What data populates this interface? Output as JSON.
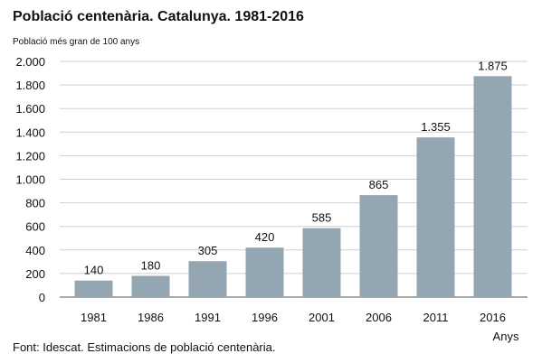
{
  "chart_data": {
    "type": "bar",
    "title": "Població centenària. Catalunya. 1981-2016",
    "ylabel": "Població més gran de 100 anys",
    "xlabel": "Anys",
    "categories": [
      "1981",
      "1986",
      "1991",
      "1996",
      "2001",
      "2006",
      "2011",
      "2016"
    ],
    "values": [
      140,
      180,
      305,
      420,
      585,
      865,
      1355,
      1875
    ],
    "value_labels": [
      "140",
      "180",
      "305",
      "420",
      "585",
      "865",
      "1.355",
      "1.875"
    ],
    "ylim": [
      0,
      2000
    ],
    "yticks": [
      0,
      200,
      400,
      600,
      800,
      1000,
      1200,
      1400,
      1600,
      1800,
      2000
    ],
    "ytick_labels": [
      "0",
      "200",
      "400",
      "600",
      "800",
      "1.000",
      "1.200",
      "1.400",
      "1.600",
      "1.800",
      "2.000"
    ],
    "grid": true,
    "bar_color": "#94a6b2",
    "grid_color": "#cfcfcf",
    "source": "Font: Idescat. Estimacions de població centenària."
  }
}
